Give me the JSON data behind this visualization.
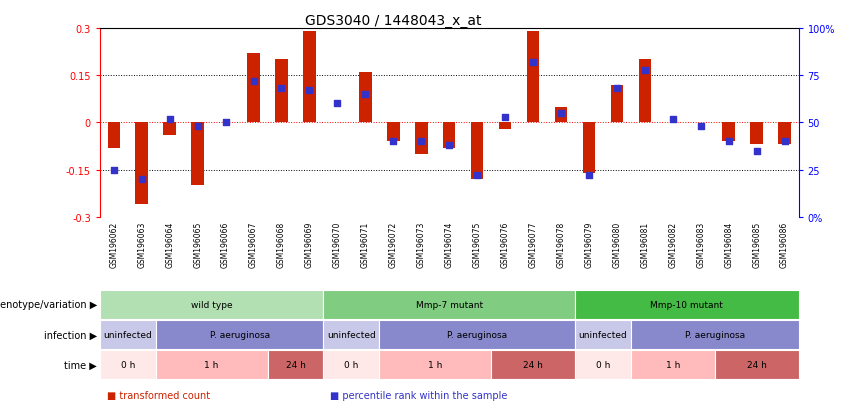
{
  "title": "GDS3040 / 1448043_x_at",
  "samples": [
    "GSM196062",
    "GSM196063",
    "GSM196064",
    "GSM196065",
    "GSM196066",
    "GSM196067",
    "GSM196068",
    "GSM196069",
    "GSM196070",
    "GSM196071",
    "GSM196072",
    "GSM196073",
    "GSM196074",
    "GSM196075",
    "GSM196076",
    "GSM196077",
    "GSM196078",
    "GSM196079",
    "GSM196080",
    "GSM196081",
    "GSM196082",
    "GSM196083",
    "GSM196084",
    "GSM196085",
    "GSM196086"
  ],
  "transformed_count": [
    -0.08,
    -0.26,
    -0.04,
    -0.2,
    0.0,
    0.22,
    0.2,
    0.29,
    0.0,
    0.16,
    -0.06,
    -0.1,
    -0.08,
    -0.18,
    -0.02,
    0.29,
    0.05,
    -0.16,
    0.12,
    0.2,
    0.0,
    0.0,
    -0.06,
    -0.07,
    -0.07
  ],
  "percentile_rank": [
    25,
    20,
    52,
    48,
    50,
    72,
    68,
    67,
    60,
    65,
    40,
    40,
    38,
    22,
    53,
    82,
    55,
    22,
    68,
    78,
    52,
    48,
    40,
    35,
    40
  ],
  "bar_color": "#cc2200",
  "dot_color": "#3333cc",
  "ylim_left": [
    -0.3,
    0.3
  ],
  "ylim_right": [
    0,
    100
  ],
  "yticks_left": [
    -0.3,
    -0.15,
    0.0,
    0.15,
    0.3
  ],
  "ytick_labels_left": [
    "-0.3",
    "-0.15",
    "0",
    "0.15",
    "0.3"
  ],
  "yticks_right": [
    0,
    25,
    50,
    75,
    100
  ],
  "ytick_labels_right": [
    "0%",
    "25",
    "50",
    "75",
    "100%"
  ],
  "hline_values": [
    -0.15,
    0.15
  ],
  "hline_zero": 0.0,
  "genotype_groups": [
    {
      "label": "wild type",
      "start": 0,
      "end": 8,
      "color": "#b2e0b2"
    },
    {
      "label": "Mmp-7 mutant",
      "start": 8,
      "end": 17,
      "color": "#80cc80"
    },
    {
      "label": "Mmp-10 mutant",
      "start": 17,
      "end": 25,
      "color": "#44bb44"
    }
  ],
  "infection_groups": [
    {
      "label": "uninfected",
      "start": 0,
      "end": 2,
      "color": "#c8c8e8"
    },
    {
      "label": "P. aeruginosa",
      "start": 2,
      "end": 8,
      "color": "#8888cc"
    },
    {
      "label": "uninfected",
      "start": 8,
      "end": 10,
      "color": "#c8c8e8"
    },
    {
      "label": "P. aeruginosa",
      "start": 10,
      "end": 17,
      "color": "#8888cc"
    },
    {
      "label": "uninfected",
      "start": 17,
      "end": 19,
      "color": "#c8c8e8"
    },
    {
      "label": "P. aeruginosa",
      "start": 19,
      "end": 25,
      "color": "#8888cc"
    }
  ],
  "time_groups": [
    {
      "label": "0 h",
      "start": 0,
      "end": 2,
      "color": "#ffe8e8"
    },
    {
      "label": "1 h",
      "start": 2,
      "end": 6,
      "color": "#ffbbbb"
    },
    {
      "label": "24 h",
      "start": 6,
      "end": 8,
      "color": "#cc6666"
    },
    {
      "label": "0 h",
      "start": 8,
      "end": 10,
      "color": "#ffe8e8"
    },
    {
      "label": "1 h",
      "start": 10,
      "end": 14,
      "color": "#ffbbbb"
    },
    {
      "label": "24 h",
      "start": 14,
      "end": 17,
      "color": "#cc6666"
    },
    {
      "label": "0 h",
      "start": 17,
      "end": 19,
      "color": "#ffe8e8"
    },
    {
      "label": "1 h",
      "start": 19,
      "end": 22,
      "color": "#ffbbbb"
    },
    {
      "label": "24 h",
      "start": 22,
      "end": 25,
      "color": "#cc6666"
    }
  ],
  "row_labels": [
    "genotype/variation",
    "infection",
    "time"
  ],
  "legend_items": [
    {
      "label": "transformed count",
      "color": "#cc2200"
    },
    {
      "label": "percentile rank within the sample",
      "color": "#3333cc"
    }
  ],
  "xtick_bg": "#dddddd",
  "bg_color": "#ffffff"
}
